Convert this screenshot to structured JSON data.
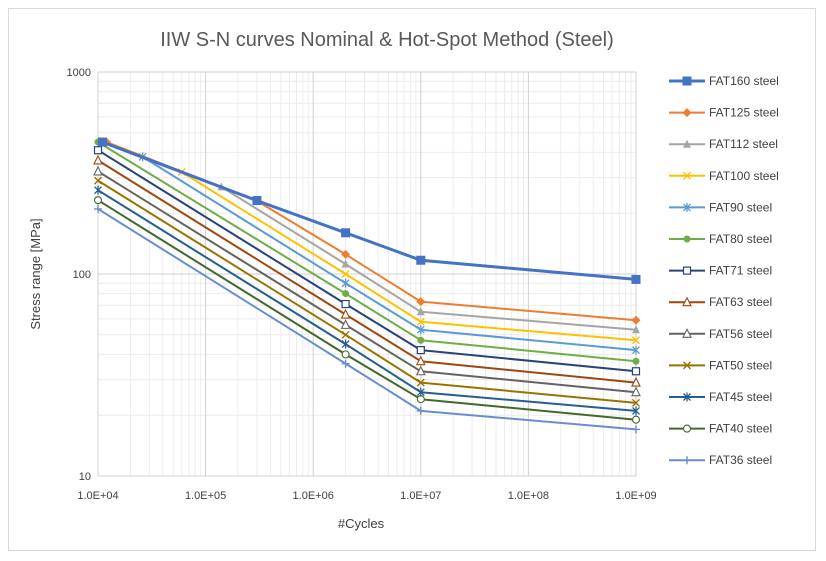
{
  "chart_data": {
    "type": "line",
    "title": "IIW S-N curves Nominal & Hot-Spot Method (Steel)",
    "xlabel": "#Cycles",
    "ylabel": "Stress range [MPa]",
    "x_scale": "log",
    "y_scale": "log",
    "xlim": [
      10000,
      1000000000
    ],
    "ylim": [
      10,
      1000
    ],
    "x_ticks": [
      10000,
      100000,
      1000000,
      10000000,
      100000000,
      1000000000
    ],
    "x_tick_labels": [
      "1.0E+04",
      "1.0E+05",
      "1.0E+06",
      "1.0E+07",
      "1.0E+08",
      "1.0E+09"
    ],
    "y_ticks": [
      10,
      100,
      1000
    ],
    "y_tick_labels": [
      "10",
      "100",
      "1000"
    ],
    "grid": true,
    "legend_position": "right",
    "series": [
      {
        "name": "FAT160 steel",
        "color": "#4472C4",
        "marker": "square-filled",
        "points": [
          [
            11000,
            450
          ],
          [
            300000,
            231
          ],
          [
            2000000,
            160
          ],
          [
            10000000,
            117
          ],
          [
            1000000000,
            94
          ]
        ]
      },
      {
        "name": "FAT125 steel",
        "color": "#ED7D31",
        "marker": "diamond-filled",
        "points": [
          [
            12000,
            450
          ],
          [
            300000,
            230
          ],
          [
            2000000,
            125
          ],
          [
            10000000,
            73
          ],
          [
            1000000000,
            59
          ]
        ]
      },
      {
        "name": "FAT112 steel",
        "color": "#A5A5A5",
        "marker": "triangle-filled",
        "points": [
          [
            11000,
            450
          ],
          [
            140000,
            270
          ],
          [
            2000000,
            112
          ],
          [
            10000000,
            65
          ],
          [
            1000000000,
            53
          ]
        ]
      },
      {
        "name": "FAT100 steel",
        "color": "#FFC000",
        "marker": "x",
        "points": [
          [
            11000,
            450
          ],
          [
            60000,
            320
          ],
          [
            2000000,
            100
          ],
          [
            10000000,
            58
          ],
          [
            1000000000,
            47
          ]
        ]
      },
      {
        "name": "FAT90 steel",
        "color": "#5B9BD5",
        "marker": "asterisk",
        "points": [
          [
            11000,
            450
          ],
          [
            26000,
            380
          ],
          [
            2000000,
            90
          ],
          [
            10000000,
            53
          ],
          [
            1000000000,
            42
          ]
        ]
      },
      {
        "name": "FAT80 steel",
        "color": "#70AD47",
        "marker": "circle-filled",
        "points": [
          [
            10000,
            450
          ],
          [
            2000000,
            80
          ],
          [
            10000000,
            47
          ],
          [
            1000000000,
            37
          ]
        ]
      },
      {
        "name": "FAT71 steel",
        "color": "#264478",
        "marker": "square-open",
        "points": [
          [
            10000,
            410
          ],
          [
            2000000,
            71
          ],
          [
            10000000,
            42
          ],
          [
            1000000000,
            33
          ]
        ]
      },
      {
        "name": "FAT63 steel",
        "color": "#9E480E",
        "marker": "triangle-open",
        "points": [
          [
            10000,
            365
          ],
          [
            2000000,
            63
          ],
          [
            10000000,
            37
          ],
          [
            1000000000,
            29
          ]
        ]
      },
      {
        "name": "FAT56 steel",
        "color": "#636363",
        "marker": "triangle-open",
        "points": [
          [
            10000,
            322
          ],
          [
            2000000,
            56
          ],
          [
            10000000,
            33
          ],
          [
            1000000000,
            26
          ]
        ]
      },
      {
        "name": "FAT50 steel",
        "color": "#997300",
        "marker": "x",
        "points": [
          [
            10000,
            290
          ],
          [
            2000000,
            50
          ],
          [
            10000000,
            29
          ],
          [
            1000000000,
            23
          ]
        ]
      },
      {
        "name": "FAT45 steel",
        "color": "#255E91",
        "marker": "asterisk",
        "points": [
          [
            10000,
            260
          ],
          [
            2000000,
            45
          ],
          [
            10000000,
            26
          ],
          [
            1000000000,
            21
          ]
        ]
      },
      {
        "name": "FAT40 steel",
        "color": "#43682B",
        "marker": "circle-open",
        "points": [
          [
            10000,
            232
          ],
          [
            2000000,
            40
          ],
          [
            10000000,
            24
          ],
          [
            1000000000,
            19
          ]
        ]
      },
      {
        "name": "FAT36 steel",
        "color": "#698ED0",
        "marker": "plus",
        "points": [
          [
            10000,
            210
          ],
          [
            2000000,
            36
          ],
          [
            10000000,
            21
          ],
          [
            1000000000,
            17
          ]
        ]
      }
    ]
  }
}
